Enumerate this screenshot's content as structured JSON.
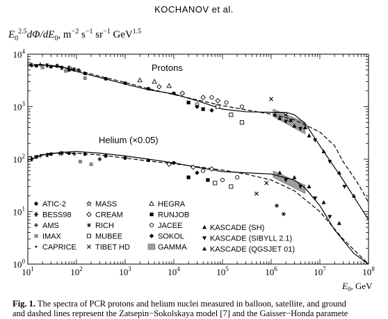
{
  "header": {
    "running_head": "KOCHANOV et al."
  },
  "chart_data": {
    "type": "scatter",
    "ylabel_parts": [
      "E",
      "0",
      "2.5",
      "dΦ/dE",
      "0",
      ", m",
      "−2",
      " s",
      "−1",
      " sr",
      "−1",
      " GeV",
      "1.5"
    ],
    "xlabel_parts": [
      "E",
      "0",
      ", GeV"
    ],
    "x_scale": "log",
    "y_scale": "log",
    "xlim": [
      10,
      100000000
    ],
    "ylim": [
      1,
      10000
    ],
    "x_ticks": [
      {
        "value": 10,
        "base": "10",
        "exp": "1"
      },
      {
        "value": 100,
        "base": "10",
        "exp": "2"
      },
      {
        "value": 1000,
        "base": "10",
        "exp": "3"
      },
      {
        "value": 10000,
        "base": "10",
        "exp": "4"
      },
      {
        "value": 100000,
        "base": "10",
        "exp": "5"
      },
      {
        "value": 1000000,
        "base": "10",
        "exp": "6"
      },
      {
        "value": 10000000,
        "base": "10",
        "exp": "7"
      },
      {
        "value": 100000000,
        "base": "10",
        "exp": "8"
      }
    ],
    "y_ticks": [
      {
        "value": 1,
        "base": "10",
        "exp": "0"
      },
      {
        "value": 10,
        "base": "10",
        "exp": "1"
      },
      {
        "value": 100,
        "base": "10",
        "exp": "2"
      },
      {
        "value": 1000,
        "base": "10",
        "exp": "3"
      },
      {
        "value": 10000,
        "base": "10",
        "exp": "4"
      }
    ],
    "annotations": [
      "Protons",
      "Helium (×0.05)"
    ],
    "legend_placement": "bottom-left",
    "legend": [
      {
        "marker": "dot",
        "label": "ATIC-2"
      },
      {
        "marker": "star6",
        "label": "BESS98"
      },
      {
        "marker": "plus",
        "label": "AMS"
      },
      {
        "marker": "square-gray",
        "label": "IMAX"
      },
      {
        "marker": "small-dot",
        "label": "CAPRICE"
      },
      {
        "marker": "star-open",
        "label": "MASS"
      },
      {
        "marker": "diamond-open",
        "label": "CREAM"
      },
      {
        "marker": "asterisk",
        "label": "RICH"
      },
      {
        "marker": "square-open",
        "label": "MUBEE"
      },
      {
        "marker": "cross",
        "label": "TIBET HD"
      },
      {
        "marker": "triangle-open",
        "label": "HEGRA"
      },
      {
        "marker": "square-filled",
        "label": "RUNJOB"
      },
      {
        "marker": "circle-open",
        "label": "JACEE"
      },
      {
        "marker": "diamond-filled",
        "label": "SOKOL"
      },
      {
        "marker": "hatched-box",
        "label": "GAMMA"
      },
      {
        "marker": "triangle-up",
        "label": "KASCADE (SH)"
      },
      {
        "marker": "triangle-down",
        "label": "KASCADE (SIBYLL 2.1)"
      },
      {
        "marker": "triangle-up-filled",
        "label": "KASCADE (QGSJET 01)"
      }
    ],
    "series": [
      {
        "group": "protons",
        "line_style": "solid",
        "x": [
          10,
          20,
          50,
          100,
          300,
          1000,
          3000,
          10000,
          30000,
          100000,
          300000,
          1000000,
          2000000,
          3000000,
          5000000,
          10000000,
          30000000,
          100000000
        ],
        "y": [
          6000,
          6300,
          5800,
          4700,
          3600,
          2700,
          2100,
          1750,
          1300,
          900,
          800,
          780,
          780,
          700,
          480,
          180,
          40,
          7
        ]
      },
      {
        "group": "protons",
        "line_style": "dashed",
        "x": [
          10,
          30,
          100,
          300,
          1000,
          3000,
          10000,
          30000,
          100000,
          300000,
          1000000,
          3000000,
          10000000,
          20000000,
          30000000,
          60000000,
          100000000
        ],
        "y": [
          6500,
          6000,
          5000,
          3800,
          2900,
          2200,
          1700,
          1350,
          1050,
          870,
          720,
          560,
          330,
          180,
          90,
          35,
          15
        ]
      },
      {
        "group": "helium",
        "line_style": "solid",
        "x": [
          10,
          20,
          50,
          100,
          300,
          1000,
          3000,
          10000,
          30000,
          100000,
          300000,
          1000000,
          3000000,
          5000000,
          10000000,
          20000000,
          50000000,
          100000000
        ],
        "y": [
          95,
          120,
          135,
          140,
          130,
          115,
          100,
          85,
          70,
          58,
          55,
          52,
          40,
          28,
          13,
          4.5,
          1.6,
          1
        ]
      },
      {
        "group": "helium",
        "line_style": "dashed",
        "x": [
          10,
          30,
          100,
          300,
          1000,
          3000,
          10000,
          30000,
          100000,
          300000,
          1000000,
          3000000,
          10000000,
          30000000,
          100000000
        ],
        "y": [
          110,
          130,
          130,
          120,
          105,
          92,
          82,
          72,
          62,
          52,
          40,
          25,
          10,
          3,
          1
        ]
      }
    ],
    "points": [
      {
        "group": "protons",
        "marker": "dot",
        "x": 15,
        "y": 6000
      },
      {
        "group": "protons",
        "marker": "dot",
        "x": 30,
        "y": 5800
      },
      {
        "group": "protons",
        "marker": "dot",
        "x": 70,
        "y": 5000
      },
      {
        "group": "protons",
        "marker": "dot",
        "x": 150,
        "y": 4300
      },
      {
        "group": "protons",
        "marker": "dot",
        "x": 400,
        "y": 3400
      },
      {
        "group": "protons",
        "marker": "dot",
        "x": 1000,
        "y": 2800
      },
      {
        "group": "protons",
        "marker": "dot",
        "x": 3000,
        "y": 2200
      },
      {
        "group": "protons",
        "marker": "dot",
        "x": 10000,
        "y": 1800
      },
      {
        "group": "protons",
        "marker": "star6",
        "x": 12,
        "y": 6200
      },
      {
        "group": "protons",
        "marker": "star6",
        "x": 25,
        "y": 6100
      },
      {
        "group": "protons",
        "marker": "star6",
        "x": 50,
        "y": 5500
      },
      {
        "group": "protons",
        "marker": "star6",
        "x": 90,
        "y": 5100
      },
      {
        "group": "protons",
        "marker": "plus",
        "x": 18,
        "y": 6400
      },
      {
        "group": "protons",
        "marker": "plus",
        "x": 40,
        "y": 6000
      },
      {
        "group": "protons",
        "marker": "plus",
        "x": 80,
        "y": 5200
      },
      {
        "group": "protons",
        "marker": "square-gray",
        "x": 20,
        "y": 5600
      },
      {
        "group": "protons",
        "marker": "square-gray",
        "x": 60,
        "y": 4800
      },
      {
        "group": "protons",
        "marker": "square-gray",
        "x": 150,
        "y": 3500
      },
      {
        "group": "protons",
        "marker": "asterisk",
        "x": 40,
        "y": 6000
      },
      {
        "group": "protons",
        "marker": "asterisk",
        "x": 70,
        "y": 5600
      },
      {
        "group": "protons",
        "marker": "asterisk",
        "x": 110,
        "y": 5000
      },
      {
        "group": "protons",
        "marker": "triangle-open",
        "x": 2000,
        "y": 3200
      },
      {
        "group": "protons",
        "marker": "triangle-open",
        "x": 4000,
        "y": 3000
      },
      {
        "group": "protons",
        "marker": "triangle-open",
        "x": 8000,
        "y": 2500
      },
      {
        "group": "protons",
        "marker": "diamond-open",
        "x": 5000,
        "y": 2400
      },
      {
        "group": "protons",
        "marker": "diamond-open",
        "x": 15000,
        "y": 1800
      },
      {
        "group": "protons",
        "marker": "diamond-open",
        "x": 40000,
        "y": 1500
      },
      {
        "group": "protons",
        "marker": "diamond-open",
        "x": 80000,
        "y": 1300
      },
      {
        "group": "protons",
        "marker": "circle-open",
        "x": 30000,
        "y": 1100
      },
      {
        "group": "protons",
        "marker": "circle-open",
        "x": 60000,
        "y": 1500
      },
      {
        "group": "protons",
        "marker": "circle-open",
        "x": 120000,
        "y": 1200
      },
      {
        "group": "protons",
        "marker": "circle-open",
        "x": 250000,
        "y": 1000
      },
      {
        "group": "protons",
        "marker": "square-open",
        "x": 80000,
        "y": 1000
      },
      {
        "group": "protons",
        "marker": "square-open",
        "x": 150000,
        "y": 700
      },
      {
        "group": "protons",
        "marker": "square-open",
        "x": 250000,
        "y": 500
      },
      {
        "group": "protons",
        "marker": "square-filled",
        "x": 20000,
        "y": 1200
      },
      {
        "group": "protons",
        "marker": "square-filled",
        "x": 40000,
        "y": 900
      },
      {
        "group": "protons",
        "marker": "diamond-filled",
        "x": 30000,
        "y": 1000
      },
      {
        "group": "protons",
        "marker": "diamond-filled",
        "x": 60000,
        "y": 850
      },
      {
        "group": "protons",
        "marker": "triangle-up-filled",
        "x": 1500000,
        "y": 600
      },
      {
        "group": "protons",
        "marker": "triangle-up-filled",
        "x": 3000000,
        "y": 430
      },
      {
        "group": "protons",
        "marker": "triangle-up-filled",
        "x": 6000000,
        "y": 280
      },
      {
        "group": "protons",
        "marker": "triangle-up-filled",
        "x": 12000000,
        "y": 140
      },
      {
        "group": "protons",
        "marker": "triangle-up-filled",
        "x": 25000000,
        "y": 55
      },
      {
        "group": "protons",
        "marker": "triangle-up-filled",
        "x": 50000000,
        "y": 20
      },
      {
        "group": "protons",
        "marker": "triangle-down",
        "x": 2000000,
        "y": 520
      },
      {
        "group": "protons",
        "marker": "triangle-down",
        "x": 4000000,
        "y": 380
      },
      {
        "group": "protons",
        "marker": "triangle-down",
        "x": 8000000,
        "y": 230
      },
      {
        "group": "protons",
        "marker": "triangle-down",
        "x": 16000000,
        "y": 90
      },
      {
        "group": "protons",
        "marker": "triangle-down",
        "x": 32000000,
        "y": 30
      },
      {
        "group": "protons",
        "marker": "triangle-up",
        "x": 1200000,
        "y": 700
      },
      {
        "group": "protons",
        "marker": "triangle-up",
        "x": 2500000,
        "y": 550
      },
      {
        "group": "protons",
        "marker": "triangle-up",
        "x": 5000000,
        "y": 400
      },
      {
        "group": "protons",
        "marker": "cross",
        "x": 1000000,
        "y": 1400
      },
      {
        "group": "protons",
        "marker": "cross",
        "x": 2000000,
        "y": 700
      },
      {
        "group": "helium",
        "marker": "dot",
        "x": 15,
        "y": 110
      },
      {
        "group": "helium",
        "marker": "dot",
        "x": 30,
        "y": 125
      },
      {
        "group": "helium",
        "marker": "dot",
        "x": 70,
        "y": 130
      },
      {
        "group": "helium",
        "marker": "dot",
        "x": 150,
        "y": 125
      },
      {
        "group": "helium",
        "marker": "dot",
        "x": 400,
        "y": 115
      },
      {
        "group": "helium",
        "marker": "dot",
        "x": 1000,
        "y": 105
      },
      {
        "group": "helium",
        "marker": "dot",
        "x": 3000,
        "y": 95
      },
      {
        "group": "helium",
        "marker": "dot",
        "x": 10000,
        "y": 85
      },
      {
        "group": "helium",
        "marker": "star6",
        "x": 12,
        "y": 100
      },
      {
        "group": "helium",
        "marker": "star6",
        "x": 25,
        "y": 120
      },
      {
        "group": "helium",
        "marker": "star6",
        "x": 50,
        "y": 130
      },
      {
        "group": "helium",
        "marker": "plus",
        "x": 18,
        "y": 115
      },
      {
        "group": "helium",
        "marker": "plus",
        "x": 45,
        "y": 128
      },
      {
        "group": "helium",
        "marker": "plus",
        "x": 90,
        "y": 125
      },
      {
        "group": "helium",
        "marker": "square-gray",
        "x": 120,
        "y": 90
      },
      {
        "group": "helium",
        "marker": "square-gray",
        "x": 200,
        "y": 80
      },
      {
        "group": "helium",
        "marker": "asterisk",
        "x": 300,
        "y": 100
      },
      {
        "group": "helium",
        "marker": "diamond-open",
        "x": 8000,
        "y": 80
      },
      {
        "group": "helium",
        "marker": "diamond-open",
        "x": 25000,
        "y": 70
      },
      {
        "group": "helium",
        "marker": "diamond-open",
        "x": 60000,
        "y": 65
      },
      {
        "group": "helium",
        "marker": "circle-open",
        "x": 40000,
        "y": 60
      },
      {
        "group": "helium",
        "marker": "circle-open",
        "x": 100000,
        "y": 40
      },
      {
        "group": "helium",
        "marker": "circle-open",
        "x": 200000,
        "y": 45
      },
      {
        "group": "helium",
        "marker": "square-open",
        "x": 70000,
        "y": 35
      },
      {
        "group": "helium",
        "marker": "square-open",
        "x": 150000,
        "y": 30
      },
      {
        "group": "helium",
        "marker": "square-filled",
        "x": 20000,
        "y": 45
      },
      {
        "group": "helium",
        "marker": "square-filled",
        "x": 50000,
        "y": 40
      },
      {
        "group": "helium",
        "marker": "diamond-filled",
        "x": 30000,
        "y": 55
      },
      {
        "group": "helium",
        "marker": "triangle-up-filled",
        "x": 1500000,
        "y": 55
      },
      {
        "group": "helium",
        "marker": "triangle-up-filled",
        "x": 3000000,
        "y": 45
      },
      {
        "group": "helium",
        "marker": "triangle-up-filled",
        "x": 6000000,
        "y": 30
      },
      {
        "group": "helium",
        "marker": "triangle-up-filled",
        "x": 12000000,
        "y": 15
      },
      {
        "group": "helium",
        "marker": "triangle-up-filled",
        "x": 25000000,
        "y": 6
      },
      {
        "group": "helium",
        "marker": "triangle-down",
        "x": 2000000,
        "y": 40
      },
      {
        "group": "helium",
        "marker": "triangle-down",
        "x": 4000000,
        "y": 30
      },
      {
        "group": "helium",
        "marker": "triangle-down",
        "x": 8000000,
        "y": 18
      },
      {
        "group": "helium",
        "marker": "triangle-down",
        "x": 16000000,
        "y": 8
      },
      {
        "group": "helium",
        "marker": "cross",
        "x": 500000,
        "y": 22
      },
      {
        "group": "helium",
        "marker": "cross",
        "x": 800000,
        "y": 35
      },
      {
        "group": "helium",
        "marker": "asterisk",
        "x": 1300000,
        "y": 13
      },
      {
        "group": "helium",
        "marker": "asterisk",
        "x": 1800000,
        "y": 9
      }
    ],
    "gamma_bands": [
      {
        "group": "protons",
        "x": [
          1100000,
          5000000
        ],
        "y_low": [
          650,
          300
        ],
        "y_high": [
          900,
          500
        ]
      },
      {
        "group": "helium",
        "x": [
          1100000,
          5000000
        ],
        "y_low": [
          45,
          22
        ],
        "y_high": [
          60,
          32
        ]
      }
    ]
  },
  "caption": {
    "fig_label": "Fig. 1.",
    "line1": " The spectra of PCR protons and helium nuclei measured in balloon, satellite, and ground",
    "line2": "and dashed lines represent the Zatsepin−Sokolskaya model [7] and the Gaisser−Honda paramete"
  }
}
